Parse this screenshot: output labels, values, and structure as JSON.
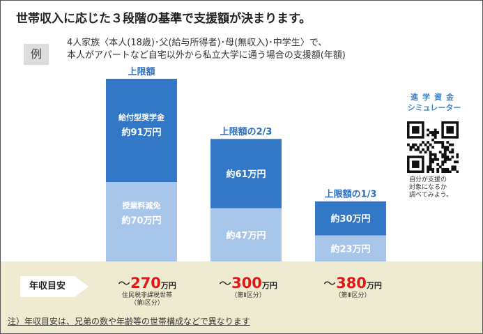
{
  "title": "世帯収入に応じた３段階の基準で支援額が決まります。",
  "example": {
    "badge": "例",
    "line1": "4人家族〈本人(18歳)･父(給与所得者)･母(無収入)･中学生〉で、",
    "line2": "本人がアパートなど自宅以外から私立大学に通う場合の支援額(年額)"
  },
  "colors": {
    "grant": "#3378c6",
    "tuition": "#a8c6ea",
    "label_blue": "#2a6fc0",
    "band": "#eeebd0",
    "red": "#e01818"
  },
  "chart_data": {
    "type": "bar",
    "stacked": true,
    "categories": [
      "上限額",
      "上限額の2/3",
      "上限額の1/3"
    ],
    "series": [
      {
        "name": "授業料減免",
        "values": [
          70,
          47,
          23
        ],
        "labels": [
          "約70万円",
          "約47万円",
          "約23万円"
        ]
      },
      {
        "name": "給付型奨学金",
        "values": [
          91,
          61,
          30
        ],
        "labels": [
          "約91万円",
          "約61万円",
          "約30万円"
        ]
      }
    ],
    "unit": "万円"
  },
  "simulator": {
    "title_line1": "進学資金",
    "title_line2": "シミュレーター",
    "note_lines": [
      "自分が支援の",
      "対象になるか",
      "調べてみよう。"
    ]
  },
  "income": {
    "label": "年収目安",
    "tiers": [
      {
        "tilde": "～",
        "amount": "270",
        "unit": "万円",
        "sub1": "住民税非課税世帯",
        "sub2": "（第Ⅰ区分）"
      },
      {
        "tilde": "～",
        "amount": "300",
        "unit": "万円",
        "sub1": "（第Ⅱ区分）",
        "sub2": ""
      },
      {
        "tilde": "～",
        "amount": "380",
        "unit": "万円",
        "sub1": "（第Ⅲ区分）",
        "sub2": ""
      }
    ]
  },
  "footnote": "注）年収目安は、兄弟の数や年齢等の世帯構成などで異なります"
}
